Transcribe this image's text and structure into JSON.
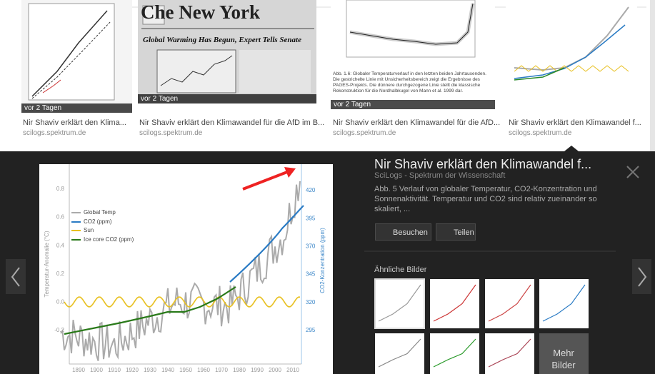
{
  "results": [
    {
      "badge": "vor 2 Tagen",
      "title": "Nir Shaviv erklärt den Klima...",
      "source": "scilogs.spektrum.de"
    },
    {
      "badge": "vor 2 Tagen",
      "title": "Nir Shaviv erklärt den Klimawandel für die AfD im B...",
      "source": "scilogs.spektrum.de"
    },
    {
      "badge": "vor 2 Tagen",
      "title": "Nir Shaviv erklärt den Klimawandel für die AfD...",
      "source": "scilogs.spektrum.de"
    },
    {
      "title": "Nir Shaviv erklärt den Klimawandel f...",
      "source": "scilogs.spektrum.de"
    }
  ],
  "thumb_texts": {
    "masthead": "Che New York",
    "headline": "Global Warming Has Begun, Expert Tells Senate",
    "caption": "Abb. 1.6: Globaler Temperaturverlauf in den letzten beiden Jahrtausenden. Die gestrichelte Linie mit Unsicherheitsbereich zeigt die Ergebnisse des PAGES-Projekts. Die dünnere durchgezogene Linie stellt die klassische Rekonstruktion für die Nordhalbkugel von Mann et al. 1999 dar."
  },
  "preview": {
    "title": "Nir Shaviv erklärt den Klimawandel f...",
    "source": "SciLogs - Spektrum der Wissenschaft",
    "description": "Abb. 5 Verlauf von globaler Temperatur, CO2-Konzentration und Sonnenaktivität. Temperatur und CO2 sind relativ zueinander so skaliert, ...",
    "buttons": [
      "Besuchen",
      "Teilen"
    ],
    "similar_heading": "Ähnliche Bilder",
    "more": "Mehr Bilder",
    "chart": {
      "y_label": "Temperatur-Anomalie (°C)",
      "y2_label": "CO2-Konzentration (ppm)",
      "yticks": [
        "0.8",
        "0.6",
        "0.4",
        "0.2",
        "0.0",
        "-0.2"
      ],
      "y2ticks": [
        "420",
        "395",
        "370",
        "345",
        "320",
        "295"
      ],
      "xticks": [
        "1890",
        "1900",
        "1910",
        "1920",
        "1930",
        "1940",
        "1950",
        "1960",
        "1970",
        "1980",
        "1990",
        "2000",
        "2010"
      ],
      "legend": [
        "Global Temp",
        "CO2 (ppm)",
        "Sun",
        "Ice core CO2 (ppm)"
      ]
    }
  }
}
